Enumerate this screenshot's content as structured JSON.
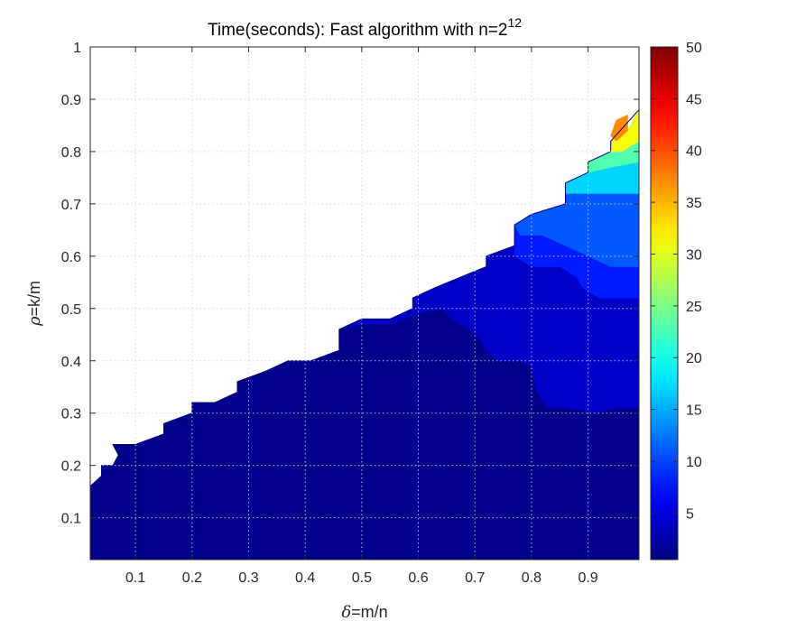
{
  "chart_data": {
    "type": "heatmap",
    "subtype": "filled-contour",
    "title": {
      "base": "Time(seconds): Fast algorithm with n=2",
      "superscript": "12"
    },
    "xlabel": {
      "symbol": "δ",
      "text": "=m/n"
    },
    "ylabel": {
      "symbol": "ρ",
      "text": "=k/m"
    },
    "xlim": [
      0.02,
      0.99
    ],
    "ylim": [
      0.02,
      1.0
    ],
    "x_ticks": [
      0.1,
      0.2,
      0.3,
      0.4,
      0.5,
      0.6,
      0.7,
      0.8,
      0.9
    ],
    "y_ticks": [
      0.1,
      0.2,
      0.3,
      0.4,
      0.5,
      0.6,
      0.7,
      0.8,
      0.9,
      1
    ],
    "x_tick_labels": [
      "0.1",
      "0.2",
      "0.3",
      "0.4",
      "0.5",
      "0.6",
      "0.7",
      "0.8",
      "0.9"
    ],
    "y_tick_labels": [
      "0.1",
      "0.2",
      "0.3",
      "0.4",
      "0.5",
      "0.6",
      "0.7",
      "0.8",
      "0.9",
      "1"
    ],
    "grid": true,
    "colormap": "jet",
    "colorbar": {
      "range": [
        0.5,
        50
      ],
      "ticks": [
        5,
        10,
        15,
        20,
        25,
        30,
        35,
        40,
        45,
        50
      ],
      "tick_labels": [
        "5",
        "10",
        "15",
        "20",
        "25",
        "30",
        "35",
        "40",
        "45",
        "50"
      ],
      "position": "right"
    },
    "boundary": [
      [
        0.02,
        0.16
      ],
      [
        0.04,
        0.18
      ],
      [
        0.04,
        0.2
      ],
      [
        0.06,
        0.2
      ],
      [
        0.07,
        0.22
      ],
      [
        0.06,
        0.24
      ],
      [
        0.1,
        0.24
      ],
      [
        0.15,
        0.26
      ],
      [
        0.15,
        0.28
      ],
      [
        0.2,
        0.3
      ],
      [
        0.2,
        0.32
      ],
      [
        0.24,
        0.32
      ],
      [
        0.28,
        0.34
      ],
      [
        0.28,
        0.36
      ],
      [
        0.33,
        0.38
      ],
      [
        0.37,
        0.4
      ],
      [
        0.41,
        0.4
      ],
      [
        0.46,
        0.42
      ],
      [
        0.46,
        0.46
      ],
      [
        0.5,
        0.48
      ],
      [
        0.55,
        0.48
      ],
      [
        0.59,
        0.5
      ],
      [
        0.59,
        0.52
      ],
      [
        0.63,
        0.54
      ],
      [
        0.72,
        0.58
      ],
      [
        0.72,
        0.6
      ],
      [
        0.77,
        0.62
      ],
      [
        0.77,
        0.66
      ],
      [
        0.8,
        0.68
      ],
      [
        0.86,
        0.7
      ],
      [
        0.86,
        0.74
      ],
      [
        0.9,
        0.76
      ],
      [
        0.9,
        0.78
      ],
      [
        0.94,
        0.8
      ],
      [
        0.94,
        0.82
      ],
      [
        0.99,
        0.88
      ]
    ],
    "regions": [
      {
        "level": 1,
        "polygon": [
          [
            0.02,
            0.02
          ],
          [
            0.99,
            0.02
          ],
          [
            0.99,
            0.31
          ],
          [
            0.95,
            0.31
          ],
          [
            0.91,
            0.3
          ],
          [
            0.87,
            0.31
          ],
          [
            0.83,
            0.31
          ],
          [
            0.81,
            0.34
          ],
          [
            0.8,
            0.39
          ],
          [
            0.78,
            0.4
          ],
          [
            0.74,
            0.4
          ],
          [
            0.72,
            0.42
          ],
          [
            0.71,
            0.44
          ],
          [
            0.69,
            0.46
          ],
          [
            0.66,
            0.48
          ],
          [
            0.64,
            0.5
          ],
          [
            0.6,
            0.49
          ],
          [
            0.55,
            0.47
          ],
          [
            0.5,
            0.47
          ],
          [
            0.46,
            0.46
          ],
          [
            0.46,
            0.42
          ],
          [
            0.41,
            0.4
          ],
          [
            0.37,
            0.4
          ],
          [
            0.33,
            0.38
          ],
          [
            0.28,
            0.36
          ],
          [
            0.28,
            0.34
          ],
          [
            0.24,
            0.32
          ],
          [
            0.2,
            0.32
          ],
          [
            0.2,
            0.3
          ],
          [
            0.15,
            0.28
          ],
          [
            0.15,
            0.26
          ],
          [
            0.1,
            0.24
          ],
          [
            0.06,
            0.24
          ],
          [
            0.07,
            0.22
          ],
          [
            0.06,
            0.2
          ],
          [
            0.04,
            0.2
          ],
          [
            0.04,
            0.18
          ],
          [
            0.02,
            0.16
          ]
        ]
      },
      {
        "level": 4,
        "polygon": [
          [
            0.46,
            0.46
          ],
          [
            0.5,
            0.48
          ],
          [
            0.55,
            0.48
          ],
          [
            0.59,
            0.5
          ],
          [
            0.59,
            0.52
          ],
          [
            0.63,
            0.54
          ],
          [
            0.72,
            0.58
          ],
          [
            0.72,
            0.6
          ],
          [
            0.77,
            0.62
          ],
          [
            0.77,
            0.64
          ],
          [
            0.82,
            0.65
          ],
          [
            0.86,
            0.68
          ],
          [
            0.99,
            0.7
          ],
          [
            0.99,
            0.31
          ],
          [
            0.95,
            0.31
          ],
          [
            0.91,
            0.3
          ],
          [
            0.87,
            0.31
          ],
          [
            0.83,
            0.31
          ],
          [
            0.81,
            0.34
          ],
          [
            0.8,
            0.39
          ],
          [
            0.78,
            0.4
          ],
          [
            0.74,
            0.4
          ],
          [
            0.72,
            0.42
          ],
          [
            0.71,
            0.44
          ],
          [
            0.69,
            0.46
          ],
          [
            0.66,
            0.48
          ],
          [
            0.64,
            0.5
          ],
          [
            0.6,
            0.49
          ],
          [
            0.55,
            0.47
          ],
          [
            0.5,
            0.47
          ]
        ]
      },
      {
        "level": 8,
        "polygon": [
          [
            0.77,
            0.62
          ],
          [
            0.77,
            0.66
          ],
          [
            0.8,
            0.68
          ],
          [
            0.86,
            0.7
          ],
          [
            0.86,
            0.74
          ],
          [
            0.99,
            0.76
          ],
          [
            0.99,
            0.52
          ],
          [
            0.94,
            0.52
          ],
          [
            0.92,
            0.52
          ],
          [
            0.89,
            0.54
          ],
          [
            0.88,
            0.56
          ],
          [
            0.85,
            0.58
          ],
          [
            0.8,
            0.58
          ],
          [
            0.77,
            0.6
          ]
        ]
      },
      {
        "level": 11,
        "polygon": [
          [
            0.8,
            0.68
          ],
          [
            0.86,
            0.7
          ],
          [
            0.86,
            0.74
          ],
          [
            0.9,
            0.76
          ],
          [
            0.99,
            0.8
          ],
          [
            0.99,
            0.58
          ],
          [
            0.94,
            0.58
          ],
          [
            0.88,
            0.61
          ],
          [
            0.82,
            0.64
          ],
          [
            0.78,
            0.64
          ],
          [
            0.77,
            0.66
          ]
        ]
      },
      {
        "level": 17,
        "polygon": [
          [
            0.86,
            0.72
          ],
          [
            0.86,
            0.74
          ],
          [
            0.9,
            0.76
          ],
          [
            0.9,
            0.78
          ],
          [
            0.94,
            0.8
          ],
          [
            0.99,
            0.82
          ],
          [
            0.99,
            0.72
          ],
          [
            0.92,
            0.72
          ]
        ]
      },
      {
        "level": 23,
        "polygon": [
          [
            0.9,
            0.76
          ],
          [
            0.9,
            0.78
          ],
          [
            0.94,
            0.8
          ],
          [
            0.94,
            0.82
          ],
          [
            0.99,
            0.85
          ],
          [
            0.99,
            0.78
          ],
          [
            0.94,
            0.77
          ]
        ]
      },
      {
        "level": 31,
        "polygon": [
          [
            0.94,
            0.8
          ],
          [
            0.94,
            0.82
          ],
          [
            0.97,
            0.84
          ],
          [
            0.99,
            0.88
          ],
          [
            0.99,
            0.82
          ],
          [
            0.96,
            0.8
          ]
        ]
      },
      {
        "level": 37,
        "polygon": [
          [
            0.94,
            0.83
          ],
          [
            0.95,
            0.86
          ],
          [
            0.97,
            0.87
          ],
          [
            0.97,
            0.84
          ],
          [
            0.95,
            0.82
          ]
        ]
      }
    ]
  }
}
